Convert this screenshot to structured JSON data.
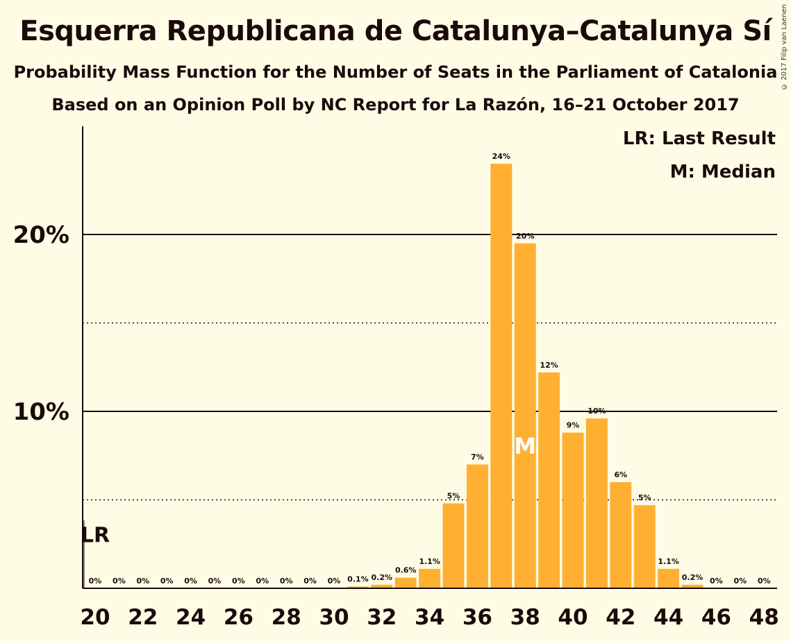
{
  "header": {
    "title": "Esquerra Republicana de Catalunya–Catalunya Sí",
    "subtitle": "Probability Mass Function for the Number of Seats in the Parliament of Catalonia",
    "source": "Based on an Opinion Poll by NC Report for La Razón, 16–21 October 2017",
    "copyright": "© 2017 Filip van Laenen"
  },
  "legend": {
    "last_result": "LR: Last Result",
    "median": "M: Median"
  },
  "colors": {
    "bar": "#FFB032",
    "background": "#FFFCE6",
    "text": "#1a0a0a"
  },
  "chart_data": {
    "type": "bar",
    "title": "Esquerra Republicana de Catalunya–Catalunya Sí",
    "x": [
      20,
      21,
      22,
      23,
      24,
      25,
      26,
      27,
      28,
      29,
      30,
      31,
      32,
      33,
      34,
      35,
      36,
      37,
      38,
      39,
      40,
      41,
      42,
      43,
      44,
      45,
      46,
      47,
      48
    ],
    "values": [
      0,
      0,
      0,
      0,
      0,
      0,
      0,
      0,
      0,
      0,
      0,
      0.1,
      0.2,
      0.6,
      1.1,
      4.8,
      7.0,
      24.0,
      19.5,
      12.2,
      8.8,
      9.6,
      6.0,
      4.7,
      1.1,
      0.2,
      0,
      0,
      0
    ],
    "data_labels": [
      "0%",
      "0%",
      "0%",
      "0%",
      "0%",
      "0%",
      "0%",
      "0%",
      "0%",
      "0%",
      "0%",
      "0.1%",
      "0.2%",
      "0.6%",
      "1.1%",
      "5%",
      "7%",
      "24%",
      "20%",
      "12%",
      "9%",
      "10%",
      "6%",
      "5%",
      "1.1%",
      "0.2%",
      "0%",
      "0%",
      "0%"
    ],
    "x_tick_labels": [
      "20",
      "22",
      "24",
      "26",
      "28",
      "30",
      "32",
      "34",
      "36",
      "38",
      "40",
      "42",
      "44",
      "46",
      "48"
    ],
    "y_tick_labels": [
      "10%",
      "20%"
    ],
    "ylim": [
      0,
      26
    ],
    "major_gridlines": [
      10,
      20
    ],
    "minor_gridlines": [
      5,
      15
    ],
    "last_result": 20,
    "last_result_label": "LR",
    "median": 38,
    "median_label": "M"
  }
}
